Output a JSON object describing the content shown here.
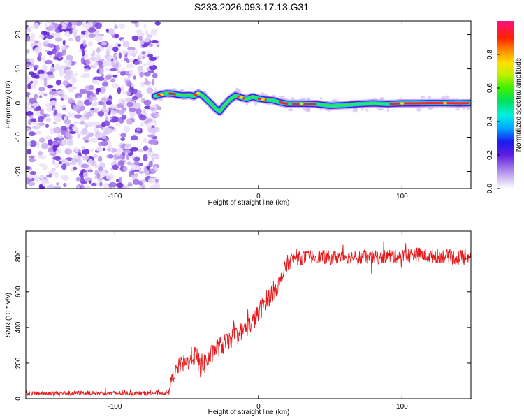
{
  "title": "S233.2026.093.17.13.G31",
  "chart_data": [
    {
      "type": "heatmap",
      "name": "spectrogram",
      "xlabel": "Height of straight line (km)",
      "ylabel": "Frequency (Hz)",
      "xlim": [
        -162,
        148
      ],
      "ylim": [
        -25,
        24
      ],
      "xticks": [
        -100,
        0,
        100
      ],
      "xtick_labels": [
        "-100",
        "0",
        "100"
      ],
      "yticks": [
        -20,
        -10,
        0,
        10,
        20
      ],
      "ytick_labels": [
        "-20",
        "-10",
        "0",
        "10",
        "20"
      ],
      "noise_region_x": [
        -162,
        -70
      ],
      "ridge": {
        "x": [
          -72,
          -68,
          -64,
          -60,
          -56,
          -52,
          -48,
          -45,
          -42,
          -39,
          -36,
          -33,
          -30,
          -27,
          -24,
          -20,
          -16,
          -12,
          -8,
          -4,
          0,
          5,
          10,
          15,
          20,
          30,
          40,
          50,
          60,
          70,
          80,
          90,
          100,
          110,
          120,
          130,
          140,
          147
        ],
        "y": [
          2.0,
          2.5,
          2.8,
          2.7,
          2.4,
          2.2,
          2.3,
          2.0,
          2.8,
          2.2,
          1.0,
          -0.2,
          -1.5,
          -2.5,
          -0.8,
          1.0,
          2.2,
          1.6,
          1.2,
          1.8,
          1.3,
          1.0,
          0.8,
          0.2,
          -0.2,
          -0.2,
          -0.3,
          -0.8,
          -0.6,
          -0.3,
          -0.1,
          -0.3,
          -0.1,
          -0.1,
          0.0,
          0.0,
          -0.1,
          0.0
        ]
      }
    },
    {
      "type": "colorbar",
      "label": "Normalized spectral amplitude",
      "range": [
        0,
        1
      ],
      "ticks": [
        0.0,
        0.2,
        0.4,
        0.6,
        0.8
      ],
      "tick_labels": [
        "0.0",
        "0.2",
        "0.4",
        "0.6",
        "0.8"
      ]
    },
    {
      "type": "line",
      "name": "snr",
      "xlabel": "Height of straight line (km)",
      "ylabel": "SNR (10 * v/v)",
      "xlim": [
        -162,
        148
      ],
      "ylim": [
        0,
        940
      ],
      "xticks": [
        -100,
        0,
        100
      ],
      "xtick_labels": [
        "-100",
        "0",
        "100"
      ],
      "yticks": [
        0,
        200,
        400,
        600,
        800
      ],
      "ytick_labels": [
        "0",
        "200",
        "400",
        "600",
        "800"
      ],
      "color": "#e41a1c",
      "series": [
        {
          "name": "SNR",
          "x": [
            -162,
            -120,
            -80,
            -63,
            -60,
            -55,
            -50,
            -45,
            -40,
            -35,
            -30,
            -25,
            -20,
            -15,
            -10,
            -5,
            0,
            5,
            10,
            15,
            20,
            25,
            30,
            40,
            50,
            60,
            70,
            80,
            90,
            100,
            110,
            120,
            130,
            140,
            148
          ],
          "y": [
            30,
            32,
            30,
            35,
            120,
            190,
            200,
            250,
            180,
            220,
            280,
            300,
            330,
            360,
            390,
            420,
            480,
            550,
            600,
            650,
            760,
            790,
            790,
            800,
            790,
            800,
            790,
            790,
            800,
            800,
            810,
            800,
            800,
            790,
            800
          ],
          "noise_amplitude": [
            12,
            12,
            12,
            12,
            35,
            45,
            50,
            60,
            70,
            55,
            55,
            55,
            55,
            50,
            50,
            50,
            55,
            55,
            55,
            50,
            45,
            40,
            40,
            40,
            40,
            40,
            40,
            40,
            40,
            40,
            40,
            40,
            40,
            45,
            40
          ]
        }
      ]
    }
  ]
}
